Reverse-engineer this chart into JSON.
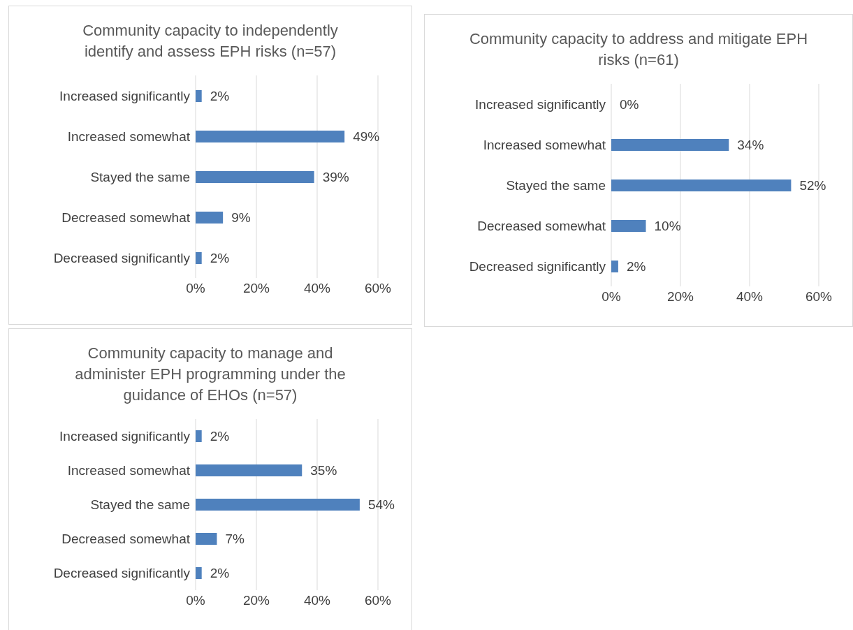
{
  "chart_data": [
    {
      "type": "bar",
      "orientation": "horizontal",
      "title": "Community capacity to independently identify and assess EPH risks (n=57)",
      "categories": [
        "Increased significantly",
        "Increased somewhat",
        "Stayed the same",
        "Decreased somewhat",
        "Decreased significantly"
      ],
      "values": [
        2,
        49,
        39,
        9,
        2
      ],
      "value_labels": [
        "2%",
        "49%",
        "39%",
        "9%",
        "2%"
      ],
      "color": "#4f81bd",
      "xlim": [
        0,
        60
      ],
      "xticks": [
        {
          "value": 0,
          "label": "0%"
        },
        {
          "value": 20,
          "label": "20%"
        },
        {
          "value": 40,
          "label": "40%"
        },
        {
          "value": 60,
          "label": "60%"
        }
      ],
      "grid": "x"
    },
    {
      "type": "bar",
      "orientation": "horizontal",
      "title": "Community capacity to address and mitigate EPH risks  (n=61)",
      "categories": [
        "Increased significantly",
        "Increased somewhat",
        "Stayed the same",
        "Decreased somewhat",
        "Decreased significantly"
      ],
      "values": [
        0,
        34,
        52,
        10,
        2
      ],
      "value_labels": [
        "0%",
        "34%",
        "52%",
        "10%",
        "2%"
      ],
      "color": "#4f81bd",
      "xlim": [
        0,
        60
      ],
      "xticks": [
        {
          "value": 0,
          "label": "0%"
        },
        {
          "value": 20,
          "label": "20%"
        },
        {
          "value": 40,
          "label": "40%"
        },
        {
          "value": 60,
          "label": "60%"
        }
      ],
      "grid": "x"
    },
    {
      "type": "bar",
      "orientation": "horizontal",
      "title": "Community capacity to manage and administer EPH programming under the guidance of EHOs (n=57)",
      "categories": [
        "Increased significantly",
        "Increased somewhat",
        "Stayed the same",
        "Decreased somewhat",
        "Decreased significantly"
      ],
      "values": [
        2,
        35,
        54,
        7,
        2
      ],
      "value_labels": [
        "2%",
        "35%",
        "54%",
        "7%",
        "2%"
      ],
      "color": "#4f81bd",
      "xlim": [
        0,
        60
      ],
      "xticks": [
        {
          "value": 0,
          "label": "0%"
        },
        {
          "value": 20,
          "label": "20%"
        },
        {
          "value": 40,
          "label": "40%"
        },
        {
          "value": 60,
          "label": "60%"
        }
      ],
      "grid": "x"
    }
  ]
}
